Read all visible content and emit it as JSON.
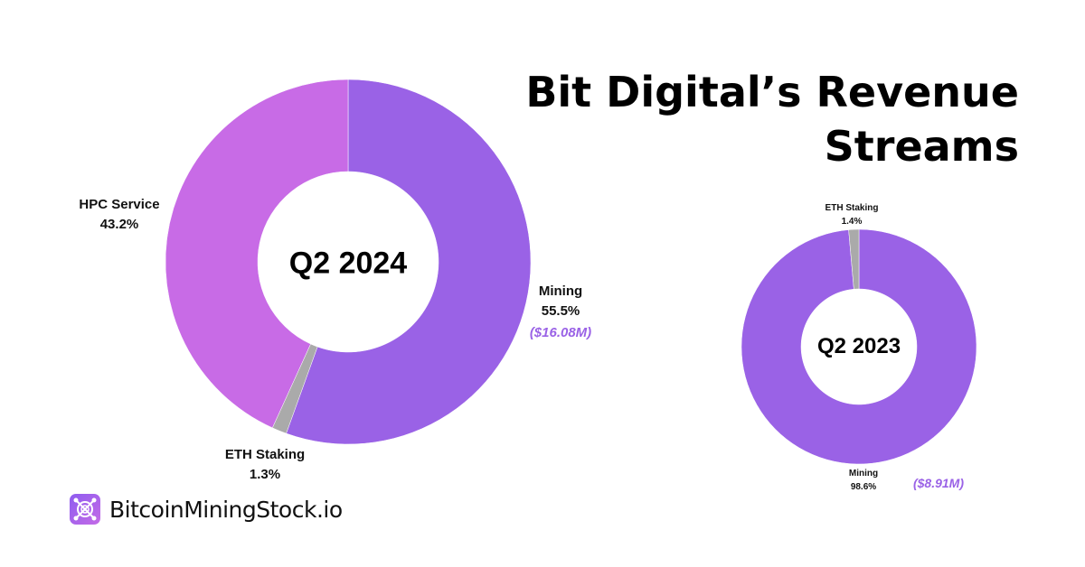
{
  "title_line1": "Bit Digital’s Revenue",
  "title_line2": "Streams",
  "logo_text": "BitcoinMiningStock.io",
  "colors": {
    "Mining": "#9a62e6",
    "HPC Service": "#c86be6",
    "ETH Staking": "#aaaaaa"
  },
  "chart_data": [
    {
      "type": "pie",
      "center_label": "Q2 2024",
      "slices": [
        {
          "label": "Mining",
          "value": 55.5,
          "pct_label": "55.5%",
          "amount": "($16.08M)"
        },
        {
          "label": "ETH Staking",
          "value": 1.3,
          "pct_label": "1.3%"
        },
        {
          "label": "HPC Service",
          "value": 43.2,
          "pct_label": "43.2%"
        }
      ]
    },
    {
      "type": "pie",
      "center_label": "Q2 2023",
      "slices": [
        {
          "label": "Mining",
          "value": 98.6,
          "pct_label": "98.6%",
          "amount": "($8.91M)"
        },
        {
          "label": "ETH Staking",
          "value": 1.4,
          "pct_label": "1.4%"
        }
      ]
    }
  ]
}
